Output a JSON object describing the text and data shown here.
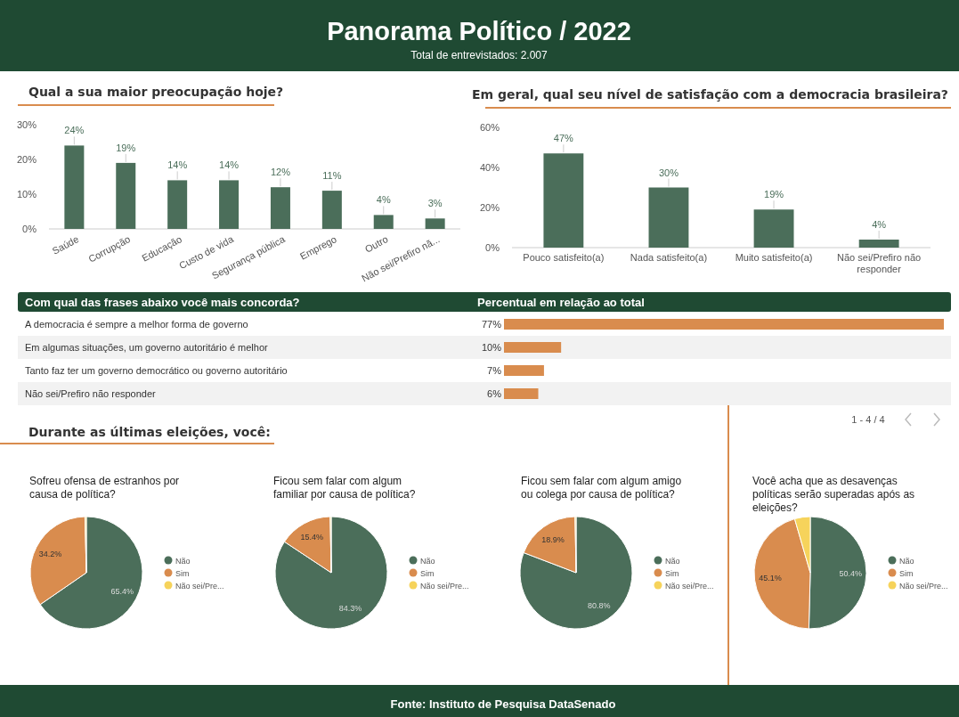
{
  "chart_data": [
    {
      "type": "other",
      "title": "Panorama Político / 2022",
      "subtitle": "Total de entrevistados: 2.007",
      "annotations": [
        "Fonte: Instituto de Pesquisa DataSenado"
      ]
    },
    {
      "type": "bar",
      "title": "Qual a sua maior preocupação hoje?",
      "categories": [
        "Saúde",
        "Corrupção",
        "Educação",
        "Custo de vida",
        "Segurança pública",
        "Emprego",
        "Outro",
        "Não sei/Prefiro nã..."
      ],
      "values": [
        24,
        19,
        14,
        14,
        12,
        11,
        4,
        3
      ],
      "value_labels": [
        "24%",
        "19%",
        "14%",
        "14%",
        "12%",
        "11%",
        "4%",
        "3%"
      ],
      "color": "#4b6e5a",
      "ylim": [
        0,
        30
      ],
      "yticks": [
        {
          "value": 0,
          "label": "0%"
        },
        {
          "value": 10,
          "label": "10%"
        },
        {
          "value": 20,
          "label": "20%"
        },
        {
          "value": 30,
          "label": "30%"
        }
      ],
      "grid": false
    },
    {
      "type": "bar",
      "title": "Em geral, qual seu nível de satisfação com a democracia brasileira?",
      "categories": [
        "Pouco satisfeito(a)",
        "Nada satisfeito(a)",
        "Muito satisfeito(a)",
        "Não sei/Prefiro não responder"
      ],
      "values": [
        47,
        30,
        19,
        4
      ],
      "value_labels": [
        "47%",
        "30%",
        "19%",
        "4%"
      ],
      "color": "#4b6e5a",
      "ylim": [
        0,
        60
      ],
      "yticks": [
        {
          "value": 0,
          "label": "0%"
        },
        {
          "value": 20,
          "label": "20%"
        },
        {
          "value": 40,
          "label": "40%"
        },
        {
          "value": 60,
          "label": "60%"
        }
      ],
      "grid": false
    },
    {
      "type": "bar",
      "orientation": "horizontal",
      "title": "Com qual das frases abaixo você mais concorda?",
      "xlabel": "Percentual em relação ao total",
      "categories": [
        "A democracia é sempre a melhor forma de governo",
        "Em algumas situações, um governo autoritário é melhor",
        "Tanto faz ter um governo democrático ou governo autoritário",
        "Não sei/Prefiro não responder"
      ],
      "values": [
        77,
        10,
        7,
        6
      ],
      "value_labels": [
        "77%",
        "10%",
        "7%",
        "6%"
      ],
      "color": "#d98c4e",
      "annotations": [
        "1 - 4 / 4"
      ]
    },
    {
      "type": "pie",
      "title": "Sofreu ofensa de estranhos por causa de política?",
      "categories": [
        "Não",
        "Sim",
        "Não sei/Pre..."
      ],
      "values": [
        65.4,
        34.2,
        0.4
      ],
      "value_labels": [
        "65.4%",
        "34.2%",
        null
      ],
      "colors": [
        "#4b6e5a",
        "#d98c4e",
        "#f6d35b"
      ],
      "legend": "right",
      "annotations": [
        "Durante as últimas eleições, você:"
      ]
    },
    {
      "type": "pie",
      "title": "Ficou sem falar com algum familiar por causa de política?",
      "categories": [
        "Não",
        "Sim",
        "Não sei/Pre..."
      ],
      "values": [
        84.3,
        15.4,
        0.3
      ],
      "value_labels": [
        "84.3%",
        "15.4%",
        null
      ],
      "colors": [
        "#4b6e5a",
        "#d98c4e",
        "#f6d35b"
      ],
      "legend": "right"
    },
    {
      "type": "pie",
      "title": "Ficou sem falar com algum amigo ou colega por causa de política?",
      "categories": [
        "Não",
        "Sim",
        "Não sei/Pre..."
      ],
      "values": [
        80.8,
        18.9,
        0.3
      ],
      "value_labels": [
        "80.8%",
        "18.9%",
        null
      ],
      "colors": [
        "#4b6e5a",
        "#d98c4e",
        "#f6d35b"
      ],
      "legend": "right"
    },
    {
      "type": "pie",
      "title": "Você acha que as desavenças políticas serão superadas após as eleições?",
      "categories": [
        "Não",
        "Sim",
        "Não sei/Pre..."
      ],
      "values": [
        50.4,
        45.1,
        4.5
      ],
      "value_labels": [
        "50.4%",
        "45.1%",
        null
      ],
      "colors": [
        "#4b6e5a",
        "#d98c4e",
        "#f6d35b"
      ],
      "legend": "right"
    }
  ]
}
